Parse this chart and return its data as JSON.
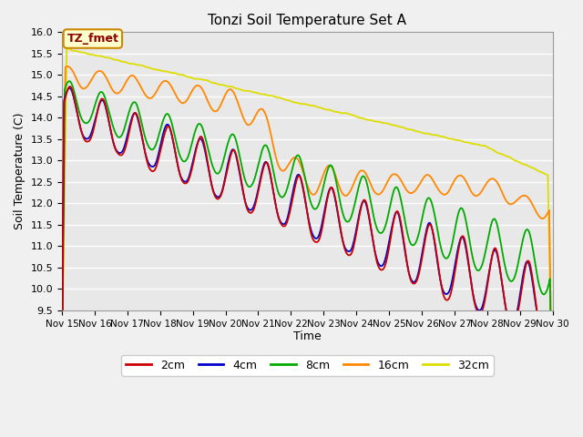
{
  "title": "Tonzi Soil Temperature Set A",
  "xlabel": "Time",
  "ylabel": "Soil Temperature (C)",
  "ylim": [
    9.5,
    16.0
  ],
  "background_color": "#f0f0f0",
  "plot_bg_color": "#e8e8e8",
  "legend_label": "TZ_fmet",
  "legend_entries": [
    "2cm",
    "4cm",
    "8cm",
    "16cm",
    "32cm"
  ],
  "line_colors": [
    "#cc0000",
    "#0000cc",
    "#00aa00",
    "#ff8800",
    "#dddd00"
  ],
  "xtick_labels": [
    "Nov 15",
    "Nov 16",
    "Nov 17",
    "Nov 18",
    "Nov 19",
    "Nov 20",
    "Nov 21",
    "Nov 22",
    "Nov 23",
    "Nov 24",
    "Nov 25",
    "Nov 26",
    "Nov 27",
    "Nov 28",
    "Nov 29",
    "Nov 30"
  ],
  "ytick_values": [
    9.5,
    10.0,
    10.5,
    11.0,
    11.5,
    12.0,
    12.5,
    13.0,
    13.5,
    14.0,
    14.5,
    15.0,
    15.5,
    16.0
  ],
  "n_points": 720,
  "start_day": 0,
  "end_day": 15
}
